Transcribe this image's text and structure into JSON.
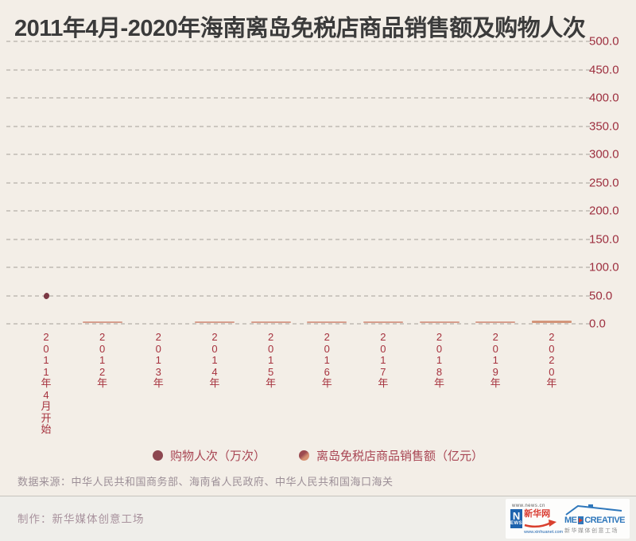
{
  "title": "2011年4月-2020年海南离岛免税店商品销售额及购物人次",
  "chart_data": {
    "type": "bar",
    "subtype": "combo-bar-and-dot, captured at animation start (all bars near zero, only first visits point drawn)",
    "categories": [
      "2011年4月开始",
      "2012年",
      "2013年",
      "2014年",
      "2015年",
      "2016年",
      "2017年",
      "2018年",
      "2019年",
      "2020年"
    ],
    "series": [
      {
        "name": "购物人次（万次）",
        "type": "scatter",
        "color": "#7a3843",
        "values": [
          50,
          null,
          null,
          null,
          null,
          null,
          null,
          null,
          null,
          null
        ]
      },
      {
        "name": "离岛免税店商品销售额（亿元）",
        "type": "bar",
        "color": "#d18f7c",
        "values": [
          0,
          2,
          0,
          2,
          2,
          2,
          2,
          2,
          2,
          4
        ]
      }
    ],
    "title": "2011年4月-2020年海南离岛免税店商品销售额及购物人次",
    "xlabel": "",
    "ylabel": "",
    "ylim": [
      0,
      500
    ],
    "yaxis": {
      "min": 0,
      "max": 500,
      "step": 50,
      "ticks": [
        "500.0",
        "450.0",
        "400.0",
        "350.0",
        "300.0",
        "250.0",
        "200.0",
        "150.0",
        "100.0",
        "50.0",
        "0.0"
      ],
      "tick_color": "#9d2f3f",
      "grid": "dashed",
      "position": "right"
    },
    "legend_position": "bottom"
  },
  "legend": {
    "items": [
      {
        "label": "购物人次（万次）",
        "color": "#8c4750",
        "color2": "#8c4750"
      },
      {
        "label": "离岛免税店商品销售额（亿元）",
        "color": "#9c4a50",
        "color2": "#d69072"
      }
    ]
  },
  "source_line": "数据来源：中华人民共和国商务部、海南省人民政府、中华人民共和国海口海关",
  "footer": {
    "credit": "制作：新华媒体创意工场",
    "xinhua_logo": {
      "url_top": "www.news.cn",
      "n": "N",
      "ews": "EWS",
      "cn": "新华网",
      "url_bottom": "www.xinhuanet.com"
    },
    "medcreative_logo": {
      "me": "ME",
      "rest": "CREATIVE",
      "cn": "新华媒体创意工场"
    }
  },
  "colors": {
    "background": "#f3eee7",
    "title": "#3b3b3b",
    "grid": "#ccc7c0",
    "axis_red": "#a6323e",
    "dot": "#7a3843",
    "bar": "#d18f7c",
    "bar_last": "#cc8566",
    "legend_text": "#a84553",
    "source_text": "#9c8f97",
    "footer_text": "#a8929d"
  }
}
